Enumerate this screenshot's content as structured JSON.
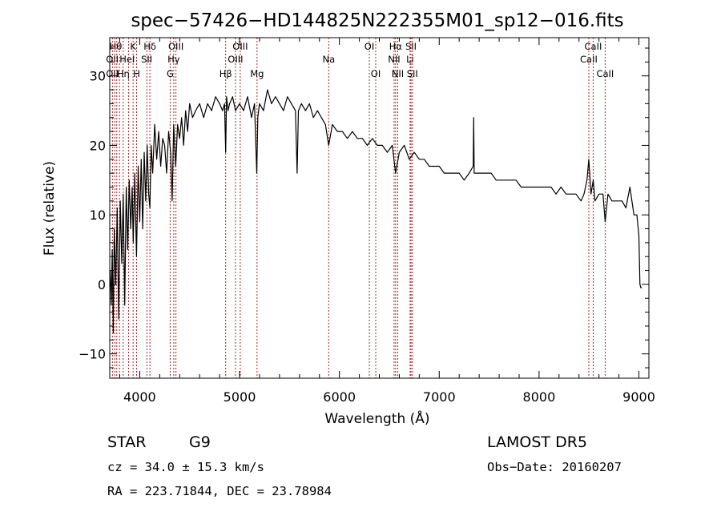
{
  "chart_data": {
    "type": "line",
    "title": "spec−57426−HD144825N222355M01_sp12−016.fits",
    "xlabel": "Wavelength (Å)",
    "ylabel": "Flux (relative)",
    "xlim": [
      3700,
      9100
    ],
    "ylim": [
      -13.5,
      35.5
    ],
    "xticks": [
      4000,
      5000,
      6000,
      7000,
      8000,
      9000
    ],
    "xtick_labels": [
      "4000",
      "5000",
      "6000",
      "7000",
      "8000",
      "9000"
    ],
    "yticks": [
      -10,
      0,
      10,
      20,
      30
    ],
    "ytick_labels": [
      "−10",
      "0",
      "10",
      "20",
      "30"
    ],
    "grid": false,
    "series": [
      {
        "x": [
          3705,
          3715,
          3725,
          3735,
          3745,
          3760,
          3775,
          3790,
          3805,
          3820,
          3835,
          3850,
          3865,
          3880,
          3895,
          3910,
          3925,
          3935,
          3950,
          3968,
          3985,
          4000,
          4015,
          4030,
          4045,
          4060,
          4075,
          4090,
          4102,
          4115,
          4130,
          4150,
          4170,
          4190,
          4210,
          4230,
          4250,
          4270,
          4290,
          4310,
          4325,
          4340,
          4360,
          4380,
          4400,
          4420,
          4440,
          4460,
          4480,
          4500,
          4530,
          4560,
          4600,
          4640,
          4680,
          4720,
          4760,
          4800,
          4830,
          4850,
          4861,
          4870,
          4885,
          4900,
          4930,
          4960,
          5000,
          5040,
          5080,
          5120,
          5150,
          5172,
          5183,
          5200,
          5240,
          5280,
          5320,
          5360,
          5400,
          5440,
          5480,
          5520,
          5560,
          5577,
          5590,
          5620,
          5660,
          5700,
          5740,
          5780,
          5820,
          5860,
          5893,
          5930,
          5980,
          6030,
          6080,
          6130,
          6180,
          6230,
          6280,
          6330,
          6380,
          6430,
          6480,
          6530,
          6563,
          6600,
          6650,
          6700,
          6750,
          6800,
          6850,
          6900,
          6950,
          7000,
          7050,
          7100,
          7150,
          7200,
          7250,
          7300,
          7340,
          7345,
          7350,
          7380,
          7420,
          7470,
          7520,
          7570,
          7620,
          7670,
          7720,
          7770,
          7820,
          7870,
          7920,
          7970,
          8020,
          8070,
          8120,
          8170,
          8220,
          8270,
          8320,
          8370,
          8420,
          8450,
          8480,
          8498,
          8520,
          8542,
          8560,
          8600,
          8640,
          8662,
          8690,
          8730,
          8780,
          8830,
          8870,
          8910,
          8950,
          8980,
          9000,
          9010,
          9020,
          9030
        ],
        "values": [
          2,
          -3,
          5,
          -7,
          8,
          0,
          11,
          -5,
          12,
          3,
          13,
          -3,
          14,
          5,
          15,
          8,
          14,
          6,
          16,
          4,
          17,
          9,
          18,
          8,
          19,
          12,
          20,
          13,
          11,
          20,
          16,
          23,
          18,
          22,
          17,
          21,
          20,
          16,
          22,
          19,
          12,
          23,
          17,
          23,
          21,
          24,
          20,
          25,
          22,
          26,
          24,
          25,
          26,
          24,
          26,
          25,
          27,
          26,
          25,
          26,
          19,
          27,
          25,
          26,
          27,
          25,
          26,
          25,
          27,
          24,
          26,
          16,
          24,
          26,
          25,
          28,
          26,
          27,
          26,
          25,
          27,
          26,
          25,
          16,
          25,
          26,
          25,
          26,
          24,
          25,
          24,
          23,
          20,
          23,
          22,
          22,
          21,
          22,
          21,
          21,
          20,
          21,
          20,
          20,
          19,
          20,
          16,
          19,
          20,
          18,
          19,
          18,
          18,
          17,
          17,
          17,
          16,
          16,
          16,
          16,
          15,
          16,
          17,
          24,
          16,
          16,
          16,
          16,
          16,
          15,
          15,
          15,
          15,
          15,
          14,
          14,
          14,
          14,
          14,
          14,
          14,
          13,
          14,
          13,
          13,
          13,
          12,
          13,
          15,
          18,
          13,
          15,
          12,
          13,
          13,
          9,
          13,
          12,
          12,
          12,
          11,
          14,
          10,
          10,
          7,
          0,
          -0.5,
          -0.5
        ]
      }
    ],
    "line_labels": [
      {
        "text": "Hθ",
        "x": 3760,
        "row": 1
      },
      {
        "text": "OII",
        "x": 3725,
        "row": 2
      },
      {
        "text": "OII",
        "x": 3725,
        "row": 3
      },
      {
        "text": "Hη",
        "x": 3835,
        "row": 3
      },
      {
        "text": "HeI",
        "x": 3875,
        "row": 2
      },
      {
        "text": "K",
        "x": 3934,
        "row": 1
      },
      {
        "text": "H",
        "x": 3969,
        "row": 3
      },
      {
        "text": "SII",
        "x": 4070,
        "row": 2
      },
      {
        "text": "Hδ",
        "x": 4102,
        "row": 1
      },
      {
        "text": "OIII",
        "x": 4363,
        "row": 1
      },
      {
        "text": "Hγ",
        "x": 4341,
        "row": 2
      },
      {
        "text": "G",
        "x": 4305,
        "row": 3
      },
      {
        "text": "Hβ",
        "x": 4861,
        "row": 3
      },
      {
        "text": "OIII",
        "x": 5007,
        "row": 1
      },
      {
        "text": "OIII",
        "x": 4959,
        "row": 2
      },
      {
        "text": "Mg",
        "x": 5175,
        "row": 3
      },
      {
        "text": "Na",
        "x": 5893,
        "row": 2
      },
      {
        "text": "OI",
        "x": 6300,
        "row": 1
      },
      {
        "text": "OI",
        "x": 6364,
        "row": 3
      },
      {
        "text": "Hα",
        "x": 6563,
        "row": 1
      },
      {
        "text": "NII",
        "x": 6548,
        "row": 2
      },
      {
        "text": "NII",
        "x": 6584,
        "row": 3
      },
      {
        "text": "SII",
        "x": 6717,
        "row": 1
      },
      {
        "text": "Li",
        "x": 6708,
        "row": 2
      },
      {
        "text": "SII",
        "x": 6731,
        "row": 3
      },
      {
        "text": "CaII",
        "x": 8542,
        "row": 1
      },
      {
        "text": "CaII",
        "x": 8498,
        "row": 2
      },
      {
        "text": "CaII",
        "x": 8662,
        "row": 3
      }
    ],
    "line_markers": [
      3727,
      3750,
      3770,
      3798,
      3835,
      3889,
      3934,
      3969,
      4072,
      4102,
      4305,
      4341,
      4363,
      4861,
      4959,
      5007,
      5175,
      5893,
      6300,
      6364,
      6548,
      6563,
      6584,
      6708,
      6717,
      6731,
      8498,
      8542,
      8662
    ],
    "colors": {
      "spectrum": "#000000",
      "markers": "#b22222",
      "axes": "#000000"
    }
  },
  "info": {
    "object_class": "STAR",
    "subclass": "G9",
    "cz": "cz = 34.0 ± 15.3 km/s",
    "coords": "RA = 223.71844, DEC =  23.78984",
    "survey": "LAMOST  DR5",
    "obs_date": "Obs−Date: 20160207"
  }
}
